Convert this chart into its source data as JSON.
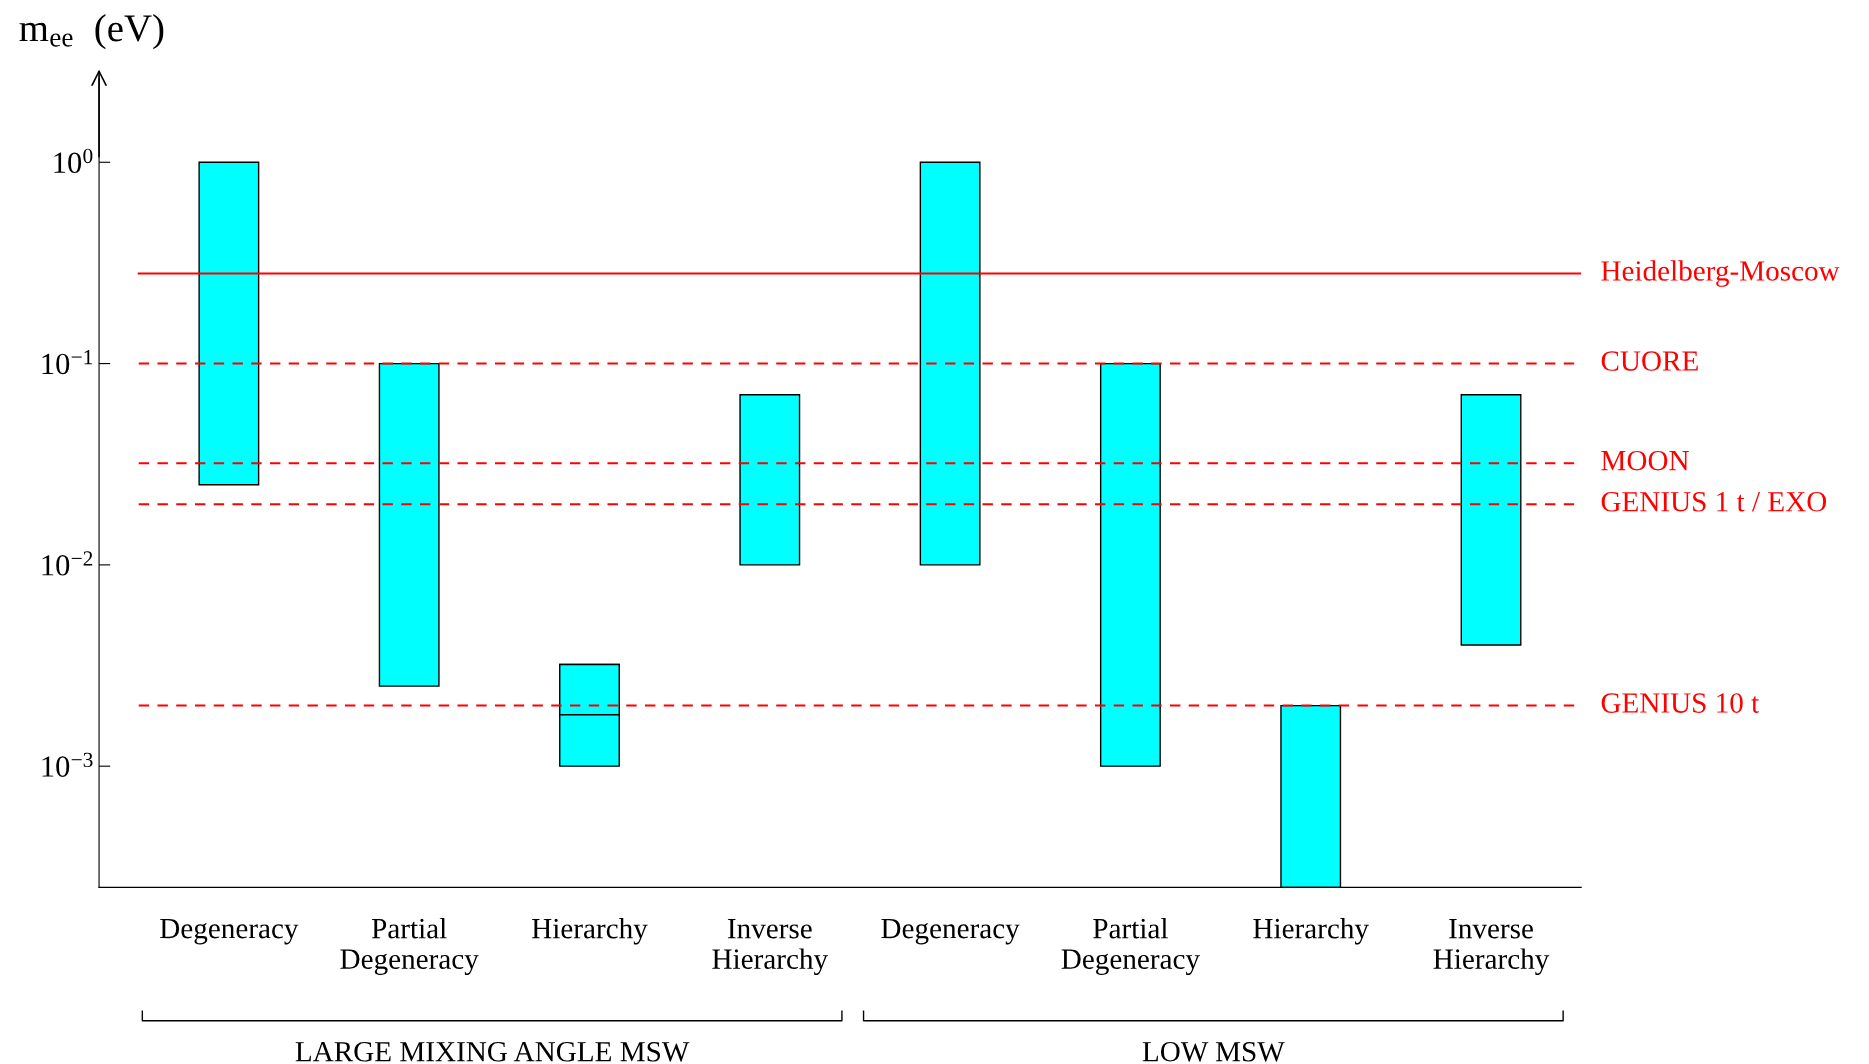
{
  "chart_data": {
    "type": "bar",
    "ylabel": "m$_{ee}$  (eV)",
    "log": true,
    "grid": false,
    "legend": false,
    "categories": [
      "Degeneracy",
      "Partial\nDegeneracy",
      "Hierarchy",
      "Inverse\nHierarchy",
      "Degeneracy",
      "Partial\nDegeneracy",
      "Hierarchy",
      "Inverse\nHierarchy"
    ],
    "series": [
      {
        "color": "#00ffff",
        "base": [
          0.025,
          0.0025,
          0.001,
          0.01,
          0.01,
          0.001,
          0.00025,
          0.004
        ],
        "values": [
          0.975,
          0.0975,
          0.0022,
          0.06,
          0.99,
          0.099,
          0.00175,
          0.066
        ]
      },
      {
        "color": "#00ffff",
        "base": [
          null,
          null,
          0.0018,
          null,
          null,
          null,
          null,
          null
        ],
        "values": [
          null,
          null,
          0.0014,
          null,
          null,
          null,
          null,
          null
        ]
      }
    ],
    "ylim": [
      0.00025,
      2.6
    ],
    "yticks": [
      {
        "value": 0.001,
        "label": "10$^{−3}$"
      },
      {
        "value": 0.01,
        "label": "10$^{−2}$"
      },
      {
        "value": 0.1,
        "label": "10$^{−1}$"
      },
      {
        "value": 1,
        "label": "10$^{0}$"
      }
    ],
    "ref_lines": [
      {
        "axis": "y",
        "value": 0.28,
        "label": "Heidelberg-Moscow",
        "color": "#ff0000",
        "line_style": "solid"
      },
      {
        "axis": "y",
        "value": 0.1,
        "label": "CUORE",
        "color": "#ff0000",
        "line_style": "dashed"
      },
      {
        "axis": "y",
        "value": 0.032,
        "label": "MOON",
        "color": "#ff0000",
        "line_style": "dashed"
      },
      {
        "axis": "y",
        "value": 0.02,
        "label": "GENIUS 1 t / EXO",
        "color": "#ff0000",
        "line_style": "dashed"
      },
      {
        "axis": "y",
        "value": 0.002,
        "label": "GENIUS 10 t",
        "color": "#ff0000",
        "line_style": "dashed"
      }
    ],
    "annotations": [
      "LARGE MIXING ANGLE MSW",
      "LOW MSW"
    ]
  }
}
